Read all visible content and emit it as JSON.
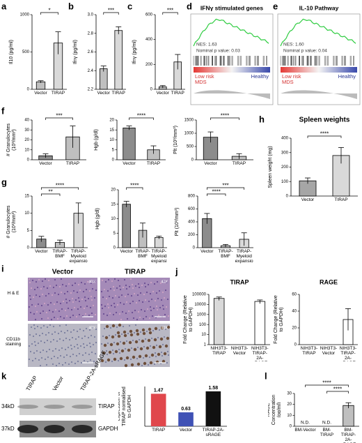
{
  "panel_labels": [
    "a",
    "b",
    "c",
    "d",
    "e",
    "f",
    "g",
    "h",
    "i",
    "j",
    "k",
    "l"
  ],
  "chart_data": [
    {
      "type": "bar",
      "ylabel": "Il10 (pg/ml)",
      "categories": [
        "Vector",
        "TIRAP"
      ],
      "values": [
        100,
        620
      ],
      "errors": [
        15,
        150
      ],
      "colors": [
        "#bfbfbf",
        "#d9d9d9"
      ],
      "ylim": [
        0,
        1000
      ],
      "yticks": [
        0,
        500,
        1000
      ],
      "significance": [
        {
          "label": "*",
          "pair": [
            0,
            1
          ]
        }
      ]
    },
    {
      "type": "bar",
      "ylabel": "Ifnγ (pg/ml)",
      "categories": [
        "Vector",
        "TIRAP"
      ],
      "values": [
        2.42,
        2.83
      ],
      "errors": [
        0.03,
        0.04
      ],
      "colors": [
        "#bfbfbf",
        "#d9d9d9"
      ],
      "ylim": [
        2.2,
        3.0
      ],
      "yticks": [
        2.2,
        2.4,
        2.6,
        2.8,
        {
          "value": 3,
          "label": "3.0"
        }
      ],
      "significance": [
        {
          "label": "***",
          "pair": [
            0,
            1
          ]
        }
      ]
    },
    {
      "type": "bar",
      "ylabel": "Ifnγ (pg/ml)",
      "categories": [
        "Vector",
        "TIRAP"
      ],
      "values": [
        20,
        220
      ],
      "errors": [
        10,
        60
      ],
      "colors": [
        "#bfbfbf",
        "#d9d9d9"
      ],
      "ylim": [
        0,
        600
      ],
      "yticks": [
        0,
        200,
        400,
        600
      ],
      "significance": [
        {
          "label": "***",
          "pair": [
            0,
            1
          ]
        }
      ]
    },
    {
      "type": "bar",
      "ylabel": "# Granulocytes (10³/mm³)",
      "categories": [
        "Vector",
        "TIRAP"
      ],
      "values": [
        4,
        23
      ],
      "errors": [
        2,
        11
      ],
      "colors": [
        "#8c8c8c",
        "#bfbfbf"
      ],
      "ylim": [
        0,
        40
      ],
      "yticks": [
        0,
        10,
        20,
        30,
        40
      ],
      "significance": [
        {
          "label": "***",
          "pair": [
            0,
            1
          ]
        }
      ]
    },
    {
      "type": "bar",
      "ylabel": "Hgb (g/dl)",
      "categories": [
        "Vector",
        "TIRAP"
      ],
      "values": [
        16,
        5
      ],
      "errors": [
        1,
        2
      ],
      "colors": [
        "#8c8c8c",
        "#bfbfbf"
      ],
      "ylim": [
        0,
        20
      ],
      "yticks": [
        0,
        5,
        10,
        15,
        20
      ],
      "significance": [
        {
          "label": "****",
          "pair": [
            0,
            1
          ]
        }
      ]
    },
    {
      "type": "bar",
      "ylabel": "Plt (10³/mm³)",
      "categories": [
        "Vector",
        "TIRAP"
      ],
      "values": [
        850,
        130
      ],
      "errors": [
        200,
        100
      ],
      "colors": [
        "#8c8c8c",
        "#bfbfbf"
      ],
      "ylim": [
        0,
        1500
      ],
      "yticks": [
        0,
        500,
        1000,
        1500
      ],
      "significance": [
        {
          "label": "****",
          "pair": [
            0,
            1
          ]
        }
      ]
    },
    {
      "type": "bar",
      "title": "Spleen weights",
      "ylabel": "Spleen weight (mg)",
      "categories": [
        "Vector",
        "TIRAP"
      ],
      "values": [
        105,
        280
      ],
      "errors": [
        20,
        55
      ],
      "colors": [
        "#a6a6a6",
        "#d9d9d9"
      ],
      "ylim": [
        0,
        400
      ],
      "yticks": [
        0,
        100,
        200,
        300,
        400
      ],
      "significance": [
        {
          "label": "****",
          "pair": [
            0,
            1
          ]
        }
      ]
    },
    {
      "type": "bar",
      "ylabel": "# Granulocytes (10³/mm³)",
      "categories": [
        "Vector",
        "TIRAP-BMF",
        "TIRAP-Myeloid expansion"
      ],
      "values": [
        2.5,
        1.5,
        10
      ],
      "errors": [
        0.8,
        0.7,
        3
      ],
      "colors": [
        "#8c8c8c",
        "#bfbfbf",
        "#d9d9d9"
      ],
      "ylim": [
        0,
        15
      ],
      "yticks": [
        0,
        5,
        10,
        15
      ],
      "significance": [
        {
          "label": "****",
          "pair": [
            0,
            2
          ]
        },
        {
          "label": "**",
          "pair": [
            0,
            1
          ]
        }
      ]
    },
    {
      "type": "bar",
      "ylabel": "Hgb (g/dl)",
      "categories": [
        "Vector",
        "TIRAP-BMF",
        "TIRAP-Myeloid expansion"
      ],
      "values": [
        15,
        6,
        3.5
      ],
      "errors": [
        1,
        2.5,
        0.5
      ],
      "colors": [
        "#8c8c8c",
        "#bfbfbf",
        "#d9d9d9"
      ],
      "ylim": [
        0,
        20
      ],
      "yticks": [
        0,
        5,
        10,
        15,
        20
      ],
      "significance": [
        {
          "label": "****",
          "pair": [
            0,
            1
          ]
        }
      ]
    },
    {
      "type": "bar",
      "ylabel": "Plt (10³/mm³)",
      "categories": [
        "Vector",
        "TIRAP-BMF",
        "TIRAP-Myeloid expansion"
      ],
      "values": [
        450,
        30,
        130
      ],
      "errors": [
        80,
        20,
        100
      ],
      "colors": [
        "#8c8c8c",
        "#bfbfbf",
        "#d9d9d9"
      ],
      "ylim": [
        0,
        800
      ],
      "yticks": [
        0,
        200,
        400,
        600,
        800
      ],
      "significance": [
        {
          "label": "***",
          "pair": [
            0,
            2
          ]
        },
        {
          "label": "****",
          "pair": [
            0,
            1
          ]
        }
      ]
    },
    {
      "type": "bar",
      "title": "TIRAP",
      "ylabel": "Fold Change (Relative to GAPDH)",
      "categories": [
        "NIH3T3-TIRAP",
        "NIH3T3-Vector",
        "NIH3T3-TIRAP-2A-sRAGE"
      ],
      "values": [
        40000,
        1,
        20000
      ],
      "errors": [
        15000,
        null,
        8000
      ],
      "colors": [
        "#d9d9d9",
        "#ffffff",
        "#ffffff"
      ],
      "ylim": [
        1,
        100000
      ],
      "yticks": [
        1,
        10,
        100,
        1000,
        10000,
        100000
      ],
      "log": true
    },
    {
      "type": "bar",
      "title": "RAGE",
      "ylabel": "Fold Change (Relative to GAPDH)",
      "categories": [
        "NIH3T3-TIRAP",
        "NIH3T3-Vector",
        "NIH3T3-TIRAP-2A-sRAGE"
      ],
      "values": [
        0,
        0,
        30
      ],
      "errors": [
        null,
        null,
        13
      ],
      "colors": [
        "#ffffff",
        "#ffffff",
        "#ffffff"
      ],
      "ylim": [
        0,
        60
      ],
      "yticks": [
        0,
        20,
        40,
        60
      ]
    },
    {
      "type": "bar",
      "ylabel": "expression of TIRAP normalised to GAPDH",
      "categories": [
        "TIRAP",
        "Vector",
        "TIRAP-2A-sRAGE"
      ],
      "values": [
        1.47,
        0.63,
        1.58
      ],
      "colors": [
        "#e0474c",
        "#3f51b5",
        "#111111"
      ],
      "ylim": [
        0,
        1.8
      ],
      "yticks": [],
      "show_values": true
    },
    {
      "type": "bar",
      "ylabel": "RAGE Concentration (pg/ml)",
      "categories": [
        "BM-Vector",
        "BM-TIRAP",
        "BM-TIRAP-2A-sRAGE"
      ],
      "values": [
        null,
        null,
        19
      ],
      "value_labels": [
        "N.D.",
        "N.D.",
        null
      ],
      "errors": [
        null,
        null,
        2.5
      ],
      "colors": [
        "#bfbfbf",
        "#bfbfbf",
        "#bfbfbf"
      ],
      "ylim": [
        0,
        30
      ],
      "yticks": [
        0,
        10,
        20,
        30
      ],
      "significance": [
        {
          "label": "****",
          "pair": [
            0,
            2
          ]
        },
        {
          "label": "****",
          "pair": [
            1,
            2
          ]
        }
      ]
    }
  ],
  "gsea": [
    {
      "title": "IFNγ stimulated genes",
      "nes": "NES: 1.63",
      "pvalue": "Nominal p value: 0.03",
      "low": "Low risk",
      "healthy": "Healthy",
      "mds": "MDS"
    },
    {
      "title": "IL-10 Pathway",
      "nes": "NES: 1.60",
      "pvalue": "Nominal p value: 0.04",
      "low": "Low risk",
      "healthy": "Healthy",
      "mds": "MDS"
    }
  ],
  "histology": {
    "columns": [
      "Vector",
      "TIRAP"
    ],
    "rows": [
      "H & E",
      "CD11b staining"
    ],
    "magnification": "40X"
  },
  "blot": {
    "lanes": [
      "TIRAP",
      "Vector",
      "TIRAP-2A-sRAGE"
    ],
    "bands": [
      {
        "size": "34kD",
        "protein": "TIRAP"
      },
      {
        "size": "37kD",
        "protein": "GAPDH"
      }
    ]
  }
}
